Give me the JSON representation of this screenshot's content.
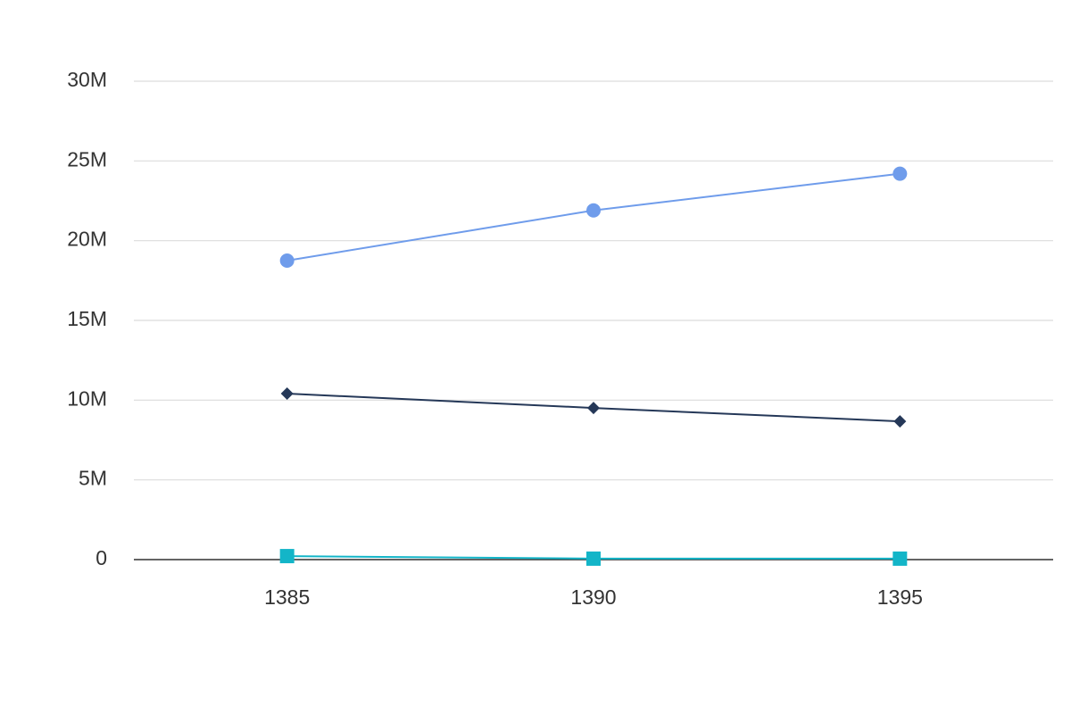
{
  "chart_data": {
    "type": "line",
    "categories": [
      "1385",
      "1390",
      "1395"
    ],
    "series": [
      {
        "color": "#6f9ceb",
        "marker": "circle",
        "values": [
          18750000,
          21900000,
          24200000
        ]
      },
      {
        "color": "#253858",
        "marker": "diamond",
        "values": [
          10410000,
          9510000,
          8670000
        ]
      },
      {
        "color": "#13b5c8",
        "marker": "square",
        "values": [
          220000,
          60000,
          60000
        ]
      }
    ],
    "ylim": [
      0,
      30000000
    ],
    "yticks": [
      0,
      {
        "value": 5000000,
        "label": "5M"
      },
      {
        "value": 10000000,
        "label": "10M"
      },
      {
        "value": 15000000,
        "label": "15M"
      },
      {
        "value": 20000000,
        "label": "20M"
      },
      {
        "value": 25000000,
        "label": "25M"
      },
      {
        "value": 30000000,
        "label": "30M"
      }
    ],
    "grid": true
  }
}
